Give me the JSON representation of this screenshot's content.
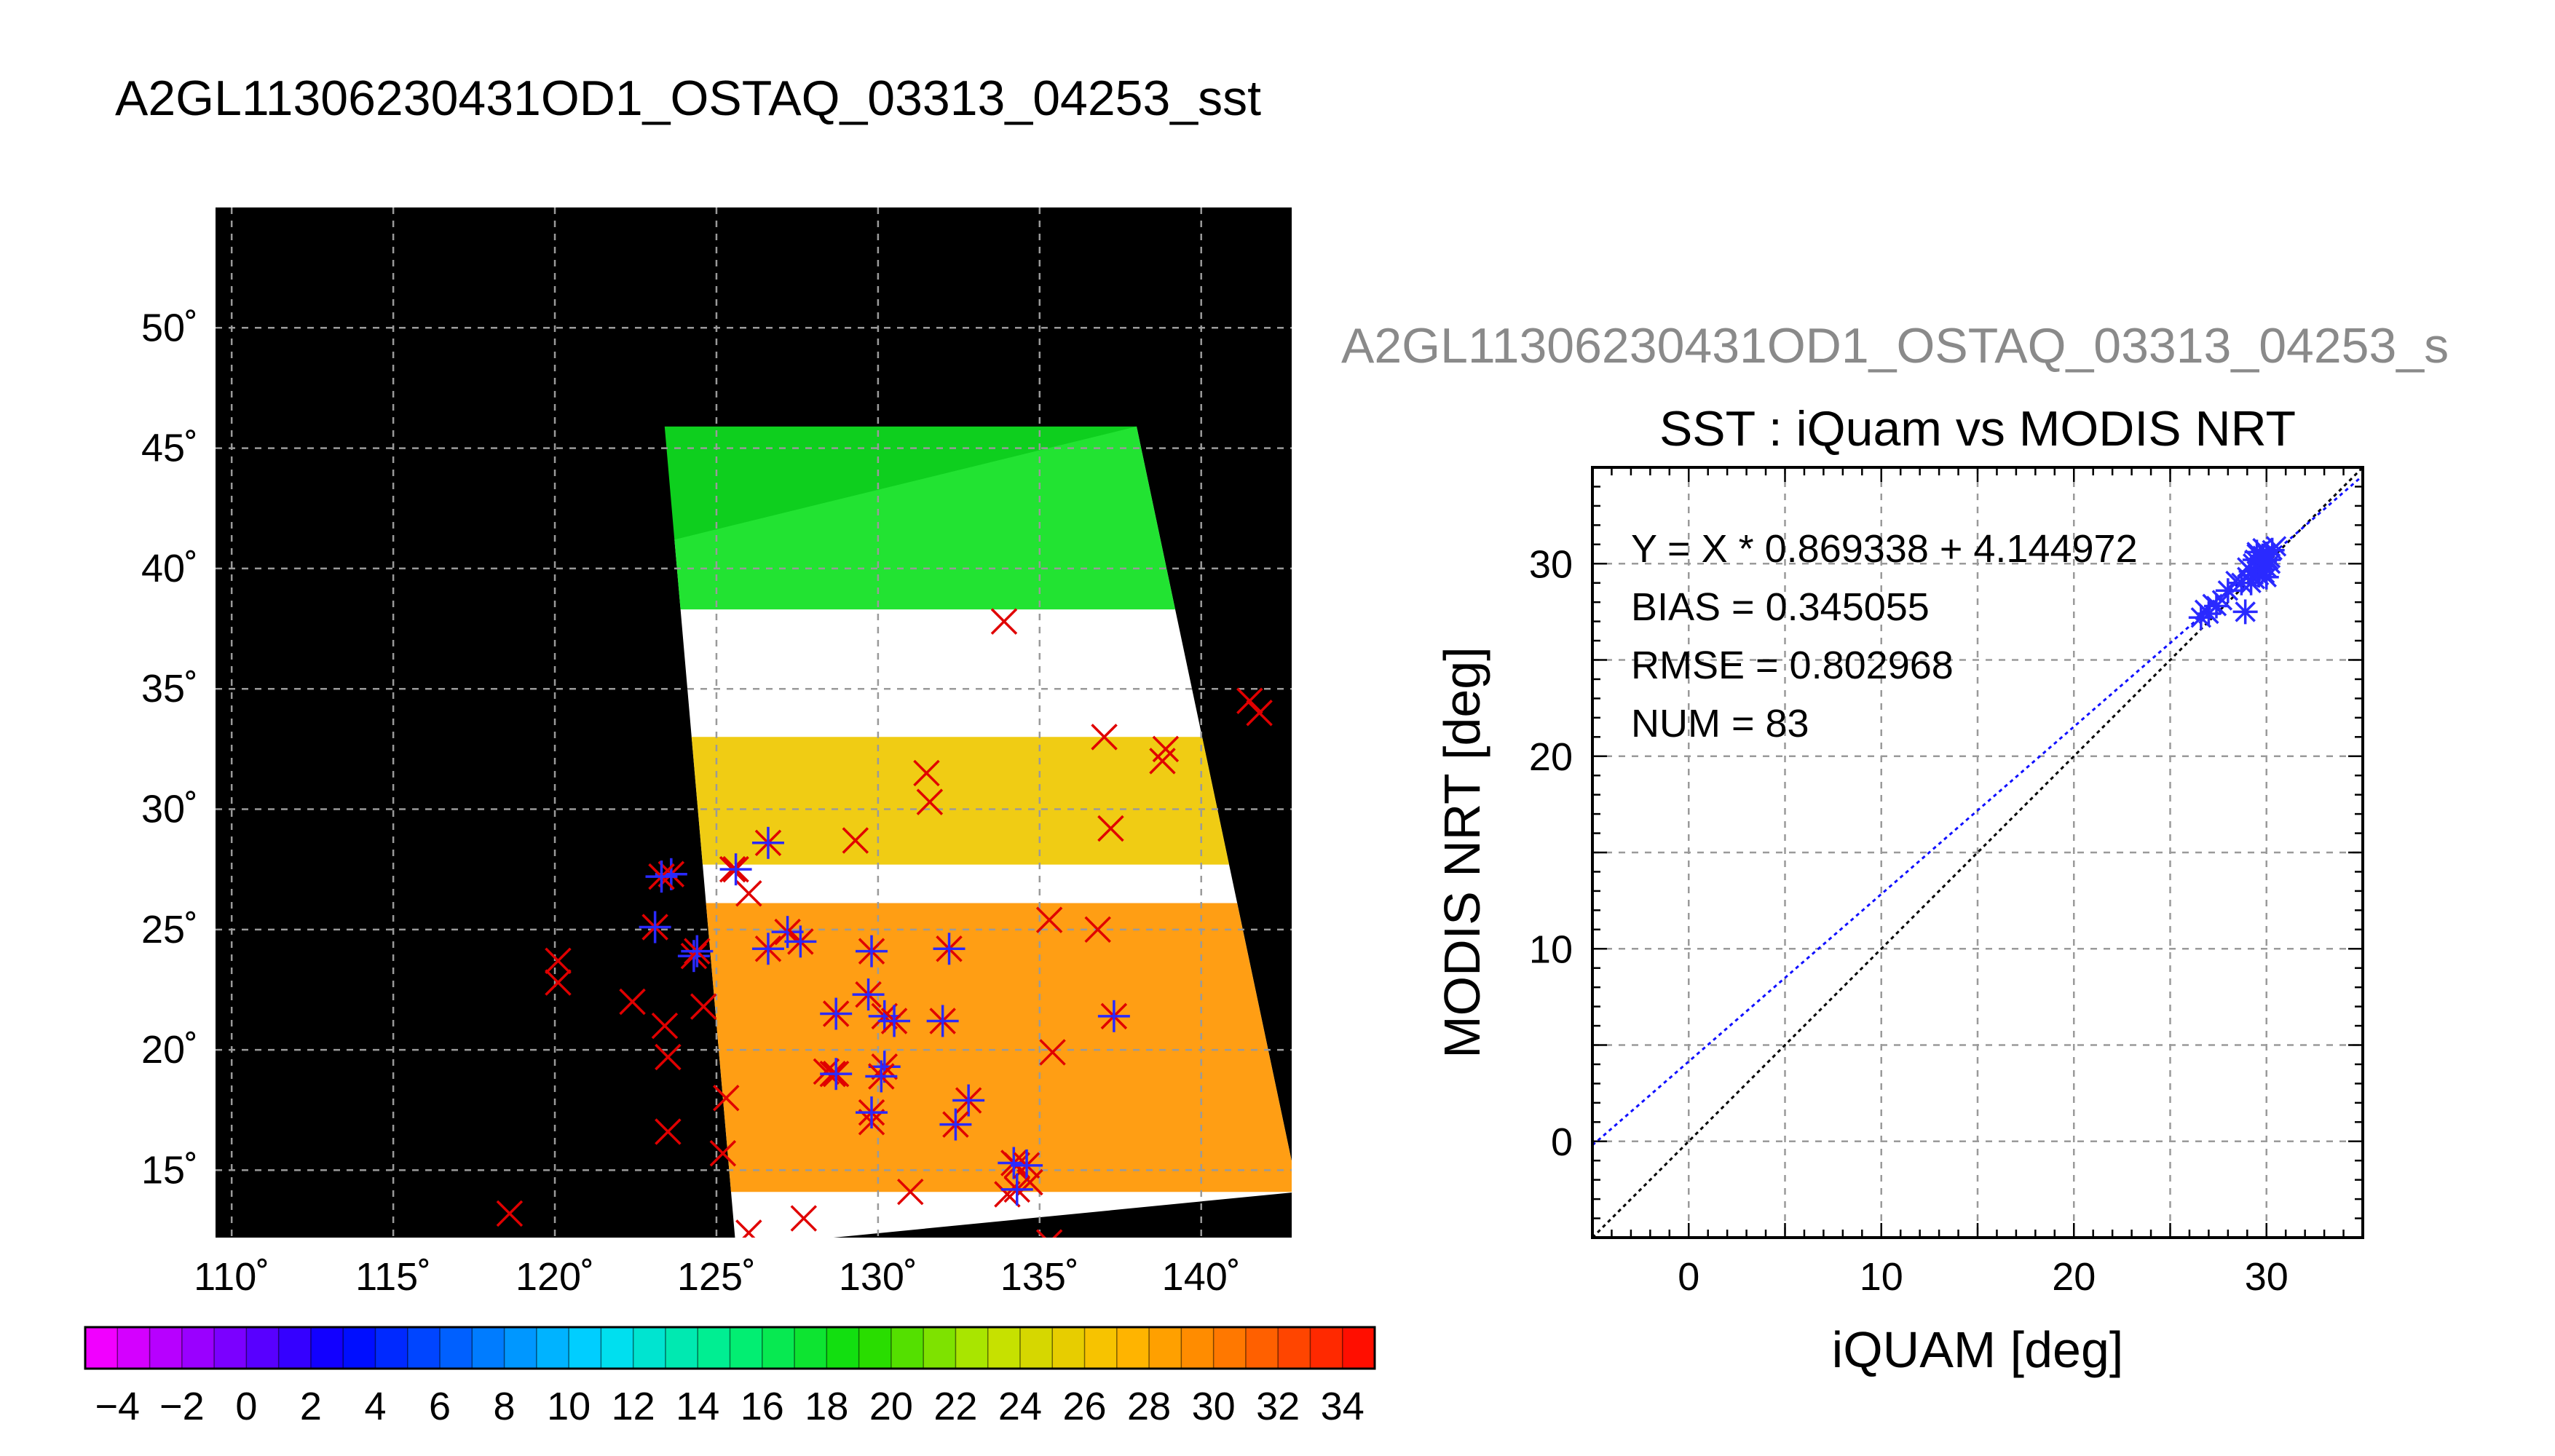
{
  "page": {
    "title": "A2GL11306230431OD1_OSTAQ_03313_04253_sst",
    "scatter_header": "A2GL11306230431OD1_OSTAQ_03313_04253_s"
  },
  "colors": {
    "background": "#ffffff",
    "map_background": "#000000",
    "cloud": "#ffffff",
    "grid": "#9a9a9a",
    "buoy_x": "#e00000",
    "match_star": "#2a2aff",
    "header_gray": "#8a8a8a",
    "regression_line": "#1010ff",
    "identity_line": "#000000"
  },
  "chart_data": [
    {
      "type": "map",
      "title": "",
      "longitude_ticks": [
        "110˚",
        "115˚",
        "120˚",
        "125˚",
        "130˚",
        "135˚",
        "140˚"
      ],
      "longitude_values": [
        110,
        115,
        120,
        125,
        130,
        135,
        140
      ],
      "latitude_ticks": [
        "50˚",
        "45˚",
        "40˚",
        "35˚",
        "30˚",
        "25˚",
        "20˚",
        "15˚"
      ],
      "latitude_values": [
        50,
        45,
        40,
        35,
        30,
        25,
        20,
        15
      ],
      "lon_range": [
        109.5,
        142.8
      ],
      "lat_range": [
        12.2,
        55.0
      ],
      "grid": true,
      "swath_corners": [
        [
          125.6,
          11.8
        ],
        [
          123.7,
          41.2
        ],
        [
          138.0,
          45.9
        ],
        [
          143.0,
          14.1
        ]
      ],
      "sst_bands": [
        {
          "label": "north",
          "lat_range": [
            38.3,
            45.9
          ],
          "sst": 18
        },
        {
          "label": "central",
          "lat_range": [
            27.7,
            33.0
          ],
          "sst": 26
        },
        {
          "label": "south",
          "lat_range": [
            14.1,
            26.1
          ],
          "sst": 29
        }
      ],
      "buoy_points": [
        [
          141.5,
          34.5
        ],
        [
          141.8,
          34.0
        ],
        [
          133.9,
          37.8
        ],
        [
          137.0,
          33.0
        ],
        [
          138.9,
          32.5
        ],
        [
          138.8,
          32.0
        ],
        [
          131.5,
          31.5
        ],
        [
          131.6,
          30.3
        ],
        [
          137.2,
          29.2
        ],
        [
          129.3,
          28.7
        ],
        [
          126.0,
          26.5
        ],
        [
          135.3,
          25.4
        ],
        [
          136.8,
          25.0
        ],
        [
          120.1,
          23.7
        ],
        [
          120.1,
          22.8
        ],
        [
          122.4,
          22.0
        ],
        [
          124.6,
          21.8
        ],
        [
          123.4,
          21.0
        ],
        [
          123.5,
          19.7
        ],
        [
          128.6,
          19.0
        ],
        [
          128.4,
          19.1
        ],
        [
          125.3,
          18.0
        ],
        [
          123.5,
          16.6
        ],
        [
          125.2,
          15.7
        ],
        [
          129.8,
          17.0
        ],
        [
          131.0,
          14.1
        ],
        [
          134.3,
          15.2
        ],
        [
          134.7,
          14.5
        ],
        [
          127.7,
          13.0
        ],
        [
          126.0,
          12.4
        ],
        [
          118.6,
          13.2
        ],
        [
          135.3,
          12.0
        ],
        [
          135.4,
          19.9
        ],
        [
          125.5,
          27.5
        ],
        [
          134.0,
          14.0
        ]
      ],
      "matched_points": [
        [
          123.6,
          27.3
        ],
        [
          123.3,
          27.2
        ],
        [
          125.6,
          27.5
        ],
        [
          126.6,
          28.6
        ],
        [
          123.1,
          25.1
        ],
        [
          124.3,
          23.9
        ],
        [
          124.4,
          24.1
        ],
        [
          126.6,
          24.2
        ],
        [
          127.2,
          24.9
        ],
        [
          127.6,
          24.5
        ],
        [
          129.8,
          24.1
        ],
        [
          132.2,
          24.2
        ],
        [
          128.7,
          21.5
        ],
        [
          129.7,
          22.3
        ],
        [
          130.2,
          21.4
        ],
        [
          130.5,
          21.2
        ],
        [
          132.0,
          21.2
        ],
        [
          137.3,
          21.4
        ],
        [
          128.7,
          19.0
        ],
        [
          130.2,
          19.3
        ],
        [
          130.1,
          18.9
        ],
        [
          129.8,
          17.4
        ],
        [
          132.8,
          17.9
        ],
        [
          132.4,
          16.9
        ],
        [
          134.2,
          15.3
        ],
        [
          134.6,
          15.2
        ],
        [
          134.3,
          14.2
        ]
      ],
      "colorbar": {
        "min": -5,
        "max": 35,
        "step": 1,
        "tick_labels": [
          "−4",
          "−2",
          "0",
          "2",
          "4",
          "6",
          "8",
          "10",
          "12",
          "14",
          "16",
          "18",
          "20",
          "22",
          "24",
          "26",
          "28",
          "30",
          "32",
          "34"
        ],
        "tick_values": [
          -4,
          -2,
          0,
          2,
          4,
          6,
          8,
          10,
          12,
          14,
          16,
          18,
          20,
          22,
          24,
          26,
          28,
          30,
          32,
          34
        ]
      }
    },
    {
      "type": "scatter",
      "title": "SST : iQuam vs MODIS NRT",
      "xlabel": "iQUAM [deg]",
      "ylabel": "MODIS NRT [deg]",
      "xlim": [
        -5,
        35
      ],
      "ylim": [
        -5,
        35
      ],
      "x_ticks": [
        0,
        10,
        20,
        30
      ],
      "y_ticks": [
        0,
        10,
        20,
        30
      ],
      "grid": true,
      "stats": [
        "Y = X * 0.869338 + 4.144972",
        "BIAS = 0.345055",
        "RMSE = 0.802968",
        "NUM = 83"
      ],
      "regression": {
        "slope": 0.869338,
        "intercept": 4.144972
      },
      "points_x": [
        26.6,
        26.8,
        27.0,
        27.2,
        27.4,
        27.7,
        28.0,
        28.4,
        28.7,
        29.0,
        29.2,
        29.3,
        29.4,
        29.5,
        29.6,
        29.6,
        29.7,
        29.7,
        29.8,
        29.8,
        29.9,
        29.9,
        30.0,
        30.0,
        30.1,
        30.2,
        30.3,
        30.5,
        29.5,
        29.4,
        29.2,
        29.0,
        30.0,
        29.8,
        29.6,
        30.2,
        28.9
      ],
      "points_y": [
        27.2,
        27.6,
        27.4,
        27.9,
        27.8,
        28.1,
        28.6,
        29.1,
        29.0,
        29.3,
        29.6,
        30.0,
        30.2,
        30.5,
        29.4,
        30.0,
        30.2,
        29.6,
        30.4,
        29.9,
        30.1,
        29.5,
        30.5,
        29.8,
        30.2,
        30.0,
        30.7,
        30.9,
        30.6,
        29.2,
        29.0,
        29.8,
        29.3,
        30.8,
        29.7,
        30.3,
        27.5
      ]
    }
  ]
}
